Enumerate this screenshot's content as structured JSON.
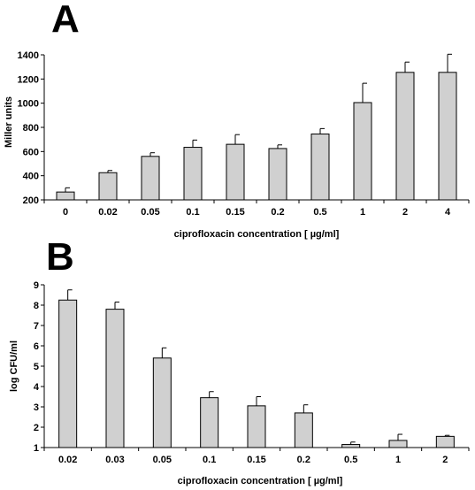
{
  "figure": {
    "panels": [
      "A",
      "B"
    ]
  },
  "chart_data": [
    {
      "type": "bar",
      "panel": "A",
      "ylabel": "Miller units",
      "xlabel": "ciprofloxacin concentration [ µg/ml]",
      "categories": [
        "0",
        "0.02",
        "0.05",
        "0.1",
        "0.15",
        "0.2",
        "0.5",
        "1",
        "2",
        "4"
      ],
      "values": [
        265,
        425,
        560,
        635,
        660,
        625,
        745,
        1005,
        1255,
        1255
      ],
      "errors": [
        35,
        18,
        30,
        60,
        80,
        30,
        45,
        160,
        85,
        150
      ],
      "ylim": [
        200,
        1400
      ],
      "yticks": [
        200,
        400,
        600,
        800,
        1000,
        1200,
        1400
      ],
      "grid": false,
      "colors": {
        "bar": "#d0d0d0",
        "edge": "#000000"
      }
    },
    {
      "type": "bar",
      "panel": "B",
      "ylabel": "log CFU/ml",
      "xlabel": "ciprofloxacin concentration [ µg/ml]",
      "categories": [
        "0.02",
        "0.03",
        "0.05",
        "0.1",
        "0.15",
        "0.2",
        "0.5",
        "1",
        "2"
      ],
      "values": [
        8.25,
        7.8,
        5.4,
        3.45,
        3.05,
        2.7,
        1.15,
        1.35,
        1.55
      ],
      "errors": [
        0.5,
        0.35,
        0.5,
        0.3,
        0.45,
        0.4,
        0.12,
        0.3,
        0.05
      ],
      "ylim": [
        1,
        9
      ],
      "yticks": [
        1,
        2,
        3,
        4,
        5,
        6,
        7,
        8,
        9
      ],
      "grid": false,
      "colors": {
        "bar": "#d0d0d0",
        "edge": "#000000"
      }
    }
  ]
}
